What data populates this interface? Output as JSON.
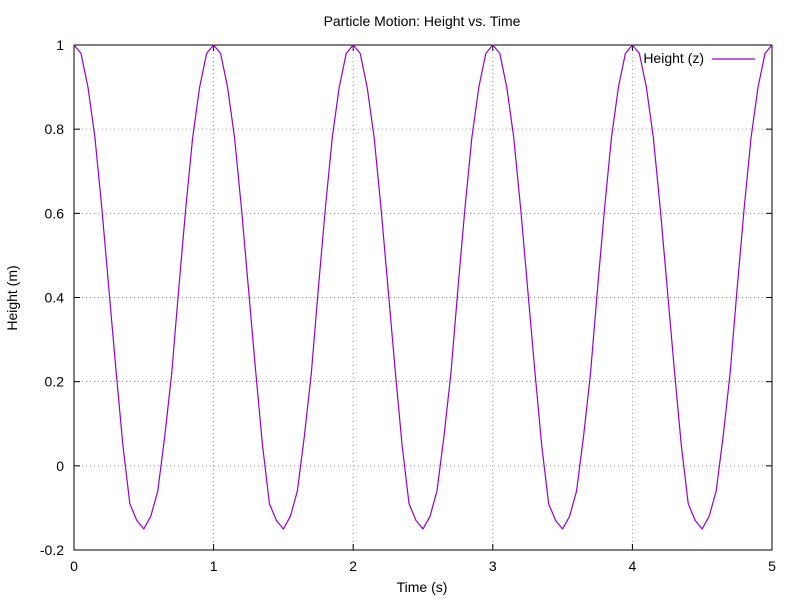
{
  "chart_data": {
    "type": "line",
    "title": "Particle Motion: Height vs. Time",
    "xlabel": "Time (s)",
    "ylabel": "Height (m)",
    "xlim": [
      0,
      5
    ],
    "ylim": [
      -0.2,
      1
    ],
    "xticks": [
      "0",
      "1",
      "2",
      "3",
      "4",
      "5"
    ],
    "yticks": [
      "-0.2",
      "0",
      "0.2",
      "0.4",
      "0.6",
      "0.8",
      "1"
    ],
    "grid": true,
    "legend_position": "top-right",
    "series": [
      {
        "name": "Height (z)",
        "color": "#9400d3",
        "x": [
          0,
          0.05,
          0.1,
          0.15,
          0.2,
          0.25,
          0.3,
          0.35,
          0.4,
          0.45,
          0.5,
          0.55,
          0.6,
          0.65,
          0.7,
          0.75,
          0.8,
          0.85,
          0.9,
          0.95,
          1.0,
          1.05,
          1.1,
          1.15,
          1.2,
          1.25,
          1.3,
          1.35,
          1.4,
          1.45,
          1.5,
          1.55,
          1.6,
          1.65,
          1.7,
          1.75,
          1.8,
          1.85,
          1.9,
          1.95,
          2.0,
          2.05,
          2.1,
          2.15,
          2.2,
          2.25,
          2.3,
          2.35,
          2.4,
          2.45,
          2.5,
          2.55,
          2.6,
          2.65,
          2.7,
          2.75,
          2.8,
          2.85,
          2.9,
          2.95,
          3.0,
          3.05,
          3.1,
          3.15,
          3.2,
          3.25,
          3.3,
          3.35,
          3.4,
          3.45,
          3.5,
          3.55,
          3.6,
          3.65,
          3.7,
          3.75,
          3.8,
          3.85,
          3.9,
          3.95,
          4.0,
          4.05,
          4.1,
          4.15,
          4.2,
          4.25,
          4.3,
          4.35,
          4.4,
          4.45,
          4.5,
          4.55,
          4.6,
          4.65,
          4.7,
          4.75,
          4.8,
          4.85,
          4.9,
          4.95,
          5.0
        ],
        "y": [
          1.0,
          0.98,
          0.9,
          0.78,
          0.61,
          0.42,
          0.23,
          0.05,
          -0.09,
          -0.13,
          -0.15,
          -0.12,
          -0.06,
          0.07,
          0.22,
          0.42,
          0.61,
          0.78,
          0.9,
          0.98,
          1.0,
          0.98,
          0.9,
          0.78,
          0.61,
          0.42,
          0.23,
          0.05,
          -0.09,
          -0.13,
          -0.15,
          -0.12,
          -0.06,
          0.07,
          0.22,
          0.42,
          0.61,
          0.78,
          0.9,
          0.98,
          1.0,
          0.98,
          0.9,
          0.78,
          0.61,
          0.42,
          0.23,
          0.05,
          -0.09,
          -0.13,
          -0.15,
          -0.12,
          -0.06,
          0.07,
          0.22,
          0.42,
          0.61,
          0.78,
          0.9,
          0.98,
          1.0,
          0.98,
          0.9,
          0.78,
          0.61,
          0.42,
          0.23,
          0.05,
          -0.09,
          -0.13,
          -0.15,
          -0.12,
          -0.06,
          0.07,
          0.22,
          0.42,
          0.61,
          0.78,
          0.9,
          0.98,
          1.0,
          0.98,
          0.9,
          0.78,
          0.61,
          0.42,
          0.23,
          0.05,
          -0.09,
          -0.13,
          -0.15,
          -0.12,
          -0.06,
          0.07,
          0.22,
          0.42,
          0.61,
          0.78,
          0.9,
          0.98,
          1.0
        ]
      }
    ]
  }
}
